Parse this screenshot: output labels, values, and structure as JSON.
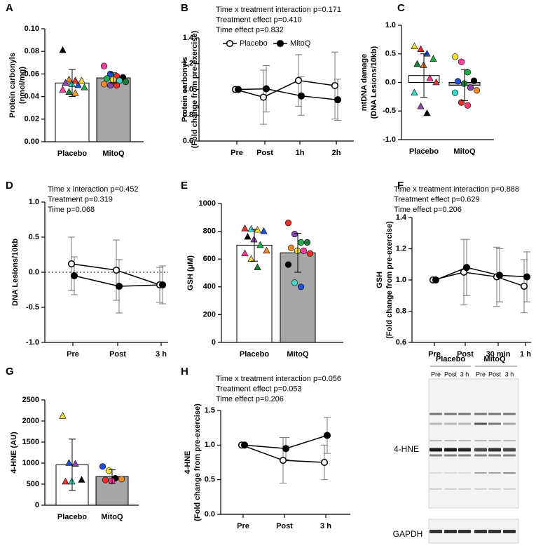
{
  "chart_data": [
    {
      "type": "bar",
      "panel": "A",
      "ylabel": [
        "Protein carbonyls",
        "(nmol/mg)"
      ],
      "categories": [
        "Placebo",
        "MitoQ"
      ],
      "values": [
        0.052,
        0.0565
      ],
      "errors": [
        0.012,
        0.0045
      ],
      "colors": [
        "#ffffff",
        "#a6a6a6"
      ],
      "point_shapes": [
        "triangle",
        "circle"
      ],
      "points": [
        [
          0.081,
          0.055,
          0.054,
          0.054,
          0.052,
          0.051,
          0.05,
          0.048,
          0.046,
          0.044,
          0.043
        ],
        [
          0.067,
          0.06,
          0.058,
          0.057,
          0.056,
          0.055,
          0.054,
          0.053,
          0.051,
          0.05,
          0.05
        ]
      ],
      "point_colors": [
        [
          "#000000",
          "#f28c28",
          "#e8312c",
          "#f5e13a",
          "#8e44ad",
          "#3fd9c9",
          "#2050d8",
          "#22b04b",
          "#ff3fa0",
          "#1e7f3a",
          "#ff9f40"
        ],
        [
          "#ff3fa0",
          "#2050d8",
          "#e8312c",
          "#000000",
          "#22b04b",
          "#f5e13a",
          "#3fd9c9",
          "#1e7f3a",
          "#f28c28",
          "#8e44ad",
          "#e8312c"
        ]
      ],
      "ylim": [
        0,
        0.1
      ],
      "yticks": [
        {
          "value": 0,
          "label": "0.00"
        },
        {
          "value": 0.02,
          "label": "0.02"
        },
        {
          "value": 0.04,
          "label": "0.04"
        },
        {
          "value": 0.06,
          "label": "0.06"
        },
        {
          "value": 0.08,
          "label": "0.08"
        },
        {
          "value": 0.1,
          "label": "0.10"
        }
      ]
    },
    {
      "type": "line",
      "panel": "B",
      "ylabel": [
        "Protein carbonyls",
        "(Fold change from pre-exercise)"
      ],
      "annotations": [
        "Time x treatment interaction p=0.171",
        "Treatment effect p=0.410",
        "Time effect p=0.832"
      ],
      "categories": [
        "Pre",
        "Post",
        "1h",
        "2h"
      ],
      "legend": true,
      "series": [
        {
          "name": "Placebo",
          "color": "#000000",
          "filled": false,
          "values": [
            1.0,
            0.94,
            1.07,
            1.03
          ],
          "errors": [
            0,
            0.21,
            0.2,
            0.26
          ]
        },
        {
          "name": "MitoQ",
          "color": "#000000",
          "filled": true,
          "values": [
            1.0,
            1.005,
            0.95,
            0.92
          ],
          "errors": [
            0,
            0.18,
            0.15,
            0.16
          ]
        }
      ],
      "ylim": [
        0.6,
        1.4
      ],
      "yticks": [
        0.6,
        0.8,
        {
          "value": 1.0,
          "label": "1.0"
        },
        1.2,
        1.4
      ]
    },
    {
      "type": "bar",
      "panel": "C",
      "ylabel": [
        "mtDNA damage",
        "(DNA Lesions/10kb)"
      ],
      "categories": [
        "Placebo",
        "MitoQ"
      ],
      "values": [
        0.12,
        -0.05
      ],
      "errors": [
        0.38,
        0.27
      ],
      "colors": [
        "#ffffff",
        "#a6a6a6"
      ],
      "point_shapes": [
        "triangle",
        "circle"
      ],
      "points": [
        [
          0.63,
          0.58,
          0.5,
          0.41,
          0.32,
          0.3,
          0.07,
          0.0,
          -0.18,
          -0.42,
          -0.54
        ],
        [
          0.45,
          0.36,
          0.18,
          0.03,
          0.02,
          -0.02,
          -0.09,
          -0.14,
          -0.18,
          -0.35,
          -0.4
        ]
      ],
      "point_colors": [
        [
          "#f5e13a",
          "#e8312c",
          "#2050d8",
          "#22b04b",
          "#1e7f3a",
          "#f28c28",
          "#ff3fa0",
          "#e8312c",
          "#3fd9c9",
          "#8e44ad",
          "#000000"
        ],
        [
          "#f5e13a",
          "#ff3fa0",
          "#22b04b",
          "#000000",
          "#2050d8",
          "#1e7f3a",
          "#8e44ad",
          "#f28c28",
          "#3fd9c9",
          "#e8312c",
          "#ff3f6a"
        ]
      ],
      "ylim": [
        -1.0,
        1.0
      ],
      "yticks": [
        {
          "value": -1.0,
          "label": "-1.0"
        },
        -0.5,
        {
          "value": 0,
          "label": "0.0"
        },
        0.5,
        {
          "value": 1.0,
          "label": "1.0"
        }
      ]
    },
    {
      "type": "line",
      "panel": "D",
      "ylabel": [
        "DNA Lesions/10kb"
      ],
      "annotations": [
        "Time x interaction p=0.452",
        "Treatment p=0.319",
        "Time p=0.068"
      ],
      "categories": [
        "Pre",
        "Post",
        "3 h"
      ],
      "hline": 0,
      "series": [
        {
          "color": "#000000",
          "filled": false,
          "values": [
            0.12,
            0.03,
            -0.18
          ],
          "errors": [
            0.38,
            0.43,
            0.25
          ]
        },
        {
          "color": "#000000",
          "filled": true,
          "values": [
            -0.05,
            -0.2,
            -0.18
          ],
          "errors": [
            0.27,
            0.38,
            0.27
          ]
        }
      ],
      "ylim": [
        -1.0,
        1.0
      ],
      "yticks": [
        {
          "value": -1.0,
          "label": "-1.0"
        },
        -0.5,
        {
          "value": 0,
          "label": "0.0"
        },
        0.5,
        {
          "value": 1.0,
          "label": "1.0"
        }
      ]
    },
    {
      "type": "bar",
      "panel": "E",
      "ylabel": [
        "GSH (μM)"
      ],
      "categories": [
        "Placebo",
        "MitoQ"
      ],
      "values": [
        700,
        645
      ],
      "errors": [
        115,
        140
      ],
      "colors": [
        "#ffffff",
        "#a6a6a6"
      ],
      "point_shapes": [
        "triangle",
        "circle"
      ],
      "points": [
        [
          820,
          815,
          810,
          800,
          760,
          740,
          700,
          660,
          640,
          600,
          540
        ],
        [
          860,
          780,
          720,
          720,
          680,
          660,
          660,
          640,
          560,
          430,
          400
        ]
      ],
      "point_colors": [
        [
          "#e8312c",
          "#3fd9c9",
          "#f5e13a",
          "#2050d8",
          "#000000",
          "#8e44ad",
          "#22b04b",
          "#f28c28",
          "#ff3fa0",
          "#f5e13a",
          "#1e7f3a"
        ],
        [
          "#e8312c",
          "#8e44ad",
          "#22b04b",
          "#1e7f3a",
          "#f28c28",
          "#f5e13a",
          "#ff3fa0",
          "#e8312c",
          "#000000",
          "#3fd9c9",
          "#2050d8"
        ]
      ],
      "ylim": [
        0,
        1000
      ],
      "yticks": [
        0,
        200,
        400,
        600,
        800,
        1000
      ]
    },
    {
      "type": "line",
      "panel": "F",
      "ylabel": [
        "GSH",
        "(Fold change from pre-exercise)"
      ],
      "annotations": [
        "Time x treatment interaction p=0.888",
        "Treatment effect p=0.629",
        "Time effect p=0.206"
      ],
      "categories": [
        "Pre",
        "Post",
        "30 min",
        "1 h"
      ],
      "series": [
        {
          "color": "#000000",
          "filled": false,
          "values": [
            1.0,
            1.05,
            1.02,
            0.96
          ],
          "errors": [
            0,
            0.21,
            0.19,
            0.17
          ]
        },
        {
          "color": "#000000",
          "filled": true,
          "values": [
            1.0,
            1.08,
            1.03,
            1.02
          ],
          "errors": [
            0,
            0.18,
            0.17,
            0.16
          ]
        }
      ],
      "ylim": [
        0.6,
        1.4
      ],
      "yticks": [
        0.6,
        0.8,
        {
          "value": 1.0,
          "label": "1.0"
        },
        1.2,
        1.4
      ]
    },
    {
      "type": "bar",
      "panel": "G",
      "ylabel": [
        "4-HNE (AU)"
      ],
      "categories": [
        "Placebo",
        "MitoQ"
      ],
      "values": [
        960,
        680
      ],
      "errors": [
        610,
        160
      ],
      "colors": [
        "#ffffff",
        "#a6a6a6"
      ],
      "point_shapes": [
        "triangle",
        "circle"
      ],
      "points": [
        [
          2120,
          1000,
          980,
          600,
          560,
          560
        ],
        [
          920,
          820,
          640,
          620,
          600,
          580
        ]
      ],
      "point_colors": [
        [
          "#f5e13a",
          "#2050d8",
          "#8e44ad",
          "#000000",
          "#e8312c",
          "#3fd9c9"
        ],
        [
          "#2050d8",
          "#f5e13a",
          "#000000",
          "#f28c28",
          "#e8312c",
          "#ff3fa0"
        ]
      ],
      "ylim": [
        0,
        2500
      ],
      "yticks": [
        0,
        500,
        1000,
        1500,
        2000,
        2500
      ]
    },
    {
      "type": "line",
      "panel": "H",
      "ylabel": [
        "4-HNE",
        "(Fold change from pre-exercise)"
      ],
      "annotations": [
        "Time x treatment interaction p=0.056",
        "Treatment effect p=0.053",
        "Time effect p=0.206"
      ],
      "categories": [
        "Pre",
        "Post",
        "3 h"
      ],
      "series": [
        {
          "color": "#000000",
          "filled": false,
          "values": [
            1.0,
            0.78,
            0.75
          ],
          "errors": [
            0,
            0.33,
            0.25
          ]
        },
        {
          "color": "#000000",
          "filled": true,
          "values": [
            1.0,
            0.95,
            1.14
          ],
          "errors": [
            0,
            0.16,
            0.26
          ]
        }
      ],
      "ylim": [
        0,
        1.5
      ],
      "yticks": [
        {
          "value": 0,
          "label": "0.0"
        },
        0.5,
        {
          "value": 1.0,
          "label": "1.0"
        },
        1.5
      ]
    }
  ],
  "blot": {
    "groups": [
      "Placebo",
      "MitoQ"
    ],
    "lanes": [
      "Pre",
      "Post",
      "3 h",
      "Pre",
      "Post",
      "3 h"
    ],
    "target": "4-HNE",
    "loading": "GAPDH"
  }
}
